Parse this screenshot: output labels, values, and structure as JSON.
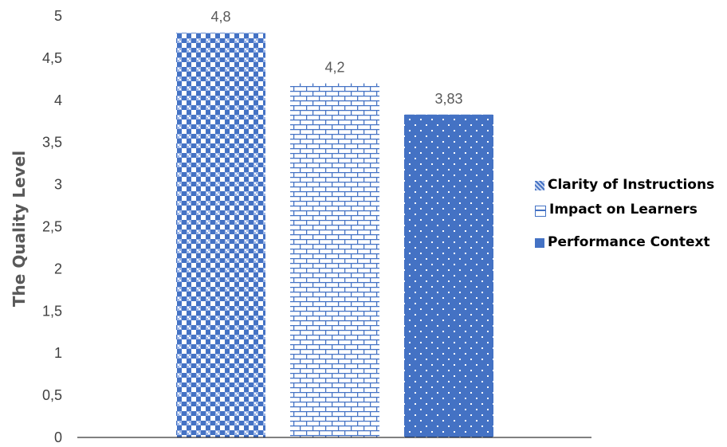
{
  "chart_data": {
    "type": "bar",
    "ylabel": "The Quality Level",
    "ylim": [
      0,
      5
    ],
    "yticks": [
      "0",
      "0,5",
      "1",
      "1,5",
      "2",
      "2,5",
      "3",
      "3,5",
      "4",
      "4,5",
      "5"
    ],
    "series": [
      {
        "name": "Clarity of Instructions",
        "value": 4.8,
        "label": "4,8",
        "pattern": "checker-weave"
      },
      {
        "name": "Impact on Learners",
        "value": 4.2,
        "label": "4,2",
        "pattern": "brick"
      },
      {
        "name": "Performance Context",
        "value": 3.83,
        "label": "3,83",
        "pattern": "dots"
      }
    ],
    "legend": "right",
    "grid": false,
    "colors": {
      "bar": "#4472c4",
      "axis": "#000000"
    }
  }
}
